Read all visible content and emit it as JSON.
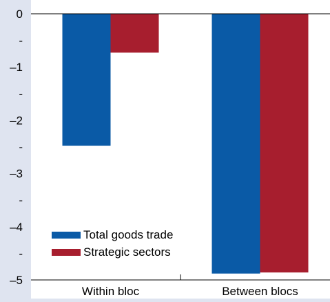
{
  "chart_data": {
    "type": "bar",
    "title": "",
    "xlabel": "",
    "ylabel": "",
    "categories": [
      "Within bloc",
      "Between blocs"
    ],
    "series": [
      {
        "name": "Total goods trade",
        "color": "#0a5aa6",
        "values": [
          -2.48,
          -4.88
        ]
      },
      {
        "name": "Strategic sectors",
        "color": "#a71e2e",
        "values": [
          -0.73,
          -4.86
        ]
      }
    ],
    "ylim": [
      -5,
      0
    ],
    "yticks": [
      {
        "value": 0,
        "label": "0"
      },
      {
        "value": -0.5,
        "label": "-"
      },
      {
        "value": -1,
        "label": "–1"
      },
      {
        "value": -1.5,
        "label": "-"
      },
      {
        "value": -2,
        "label": "–2"
      },
      {
        "value": -2.5,
        "label": "-"
      },
      {
        "value": -3,
        "label": "–3"
      },
      {
        "value": -3.5,
        "label": "-"
      },
      {
        "value": -4,
        "label": "–4"
      },
      {
        "value": -4.5,
        "label": "-"
      },
      {
        "value": -5,
        "label": "–5"
      }
    ],
    "grid": false,
    "legend_position": "bottom-left",
    "plot_background": "#ffffff",
    "page_background": "#dfe4f0"
  }
}
